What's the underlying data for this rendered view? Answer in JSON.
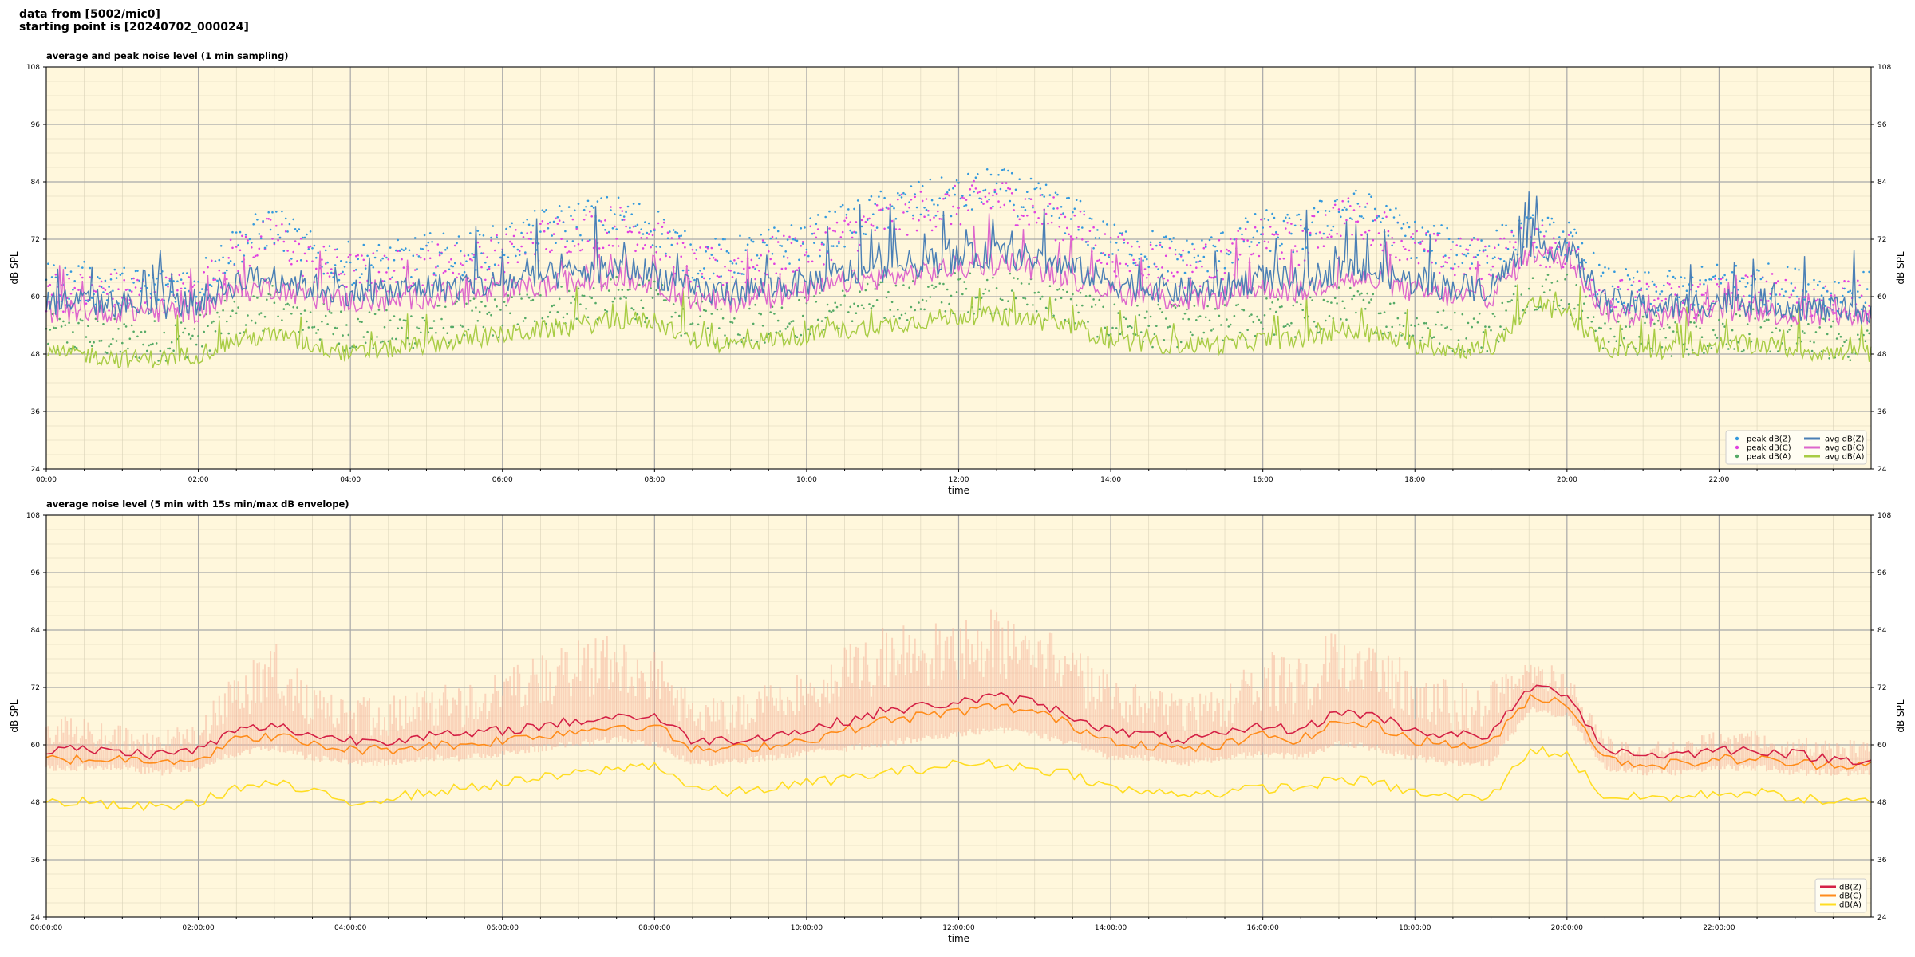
{
  "header": {
    "line1": "data from [5002/mic0]",
    "line2": "starting point is [20240702_000024]"
  },
  "chart_data": [
    {
      "type": "line",
      "title": "average and peak noise level (1 min sampling)",
      "xlabel": "time",
      "ylabel": "dB SPL",
      "ylim": [
        24,
        108
      ],
      "yticks": [
        "24",
        "36",
        "48",
        "60",
        "72",
        "84",
        "96",
        "108"
      ],
      "xlim_hours": [
        0,
        24
      ],
      "xticks": [
        "00:00",
        "02:00",
        "04:00",
        "06:00",
        "08:00",
        "10:00",
        "12:00",
        "14:00",
        "16:00",
        "18:00",
        "20:00",
        "22:00"
      ],
      "grid": true,
      "legend_position": "lower-right",
      "colors": {
        "background": "#fff7dc",
        "peak_z": "#3399dd",
        "peak_c": "#e040e0",
        "peak_a": "#55aa66",
        "avg_z": "#4a7fb5",
        "avg_c": "#dd66cc",
        "avg_a": "#a8cc44"
      },
      "legend": [
        "peak dB(Z)",
        "peak dB(C)",
        "peak dB(A)",
        "avg dB(Z)",
        "avg dB(C)",
        "avg dB(A)"
      ],
      "x": [
        0,
        0.5,
        1,
        1.5,
        2,
        2.5,
        3,
        3.5,
        4,
        4.5,
        5,
        5.5,
        6,
        6.5,
        7,
        7.5,
        8,
        8.5,
        9,
        9.5,
        10,
        10.5,
        11,
        11.5,
        12,
        12.5,
        13,
        13.5,
        14,
        14.5,
        15,
        15.5,
        16,
        16.5,
        17,
        17.5,
        18,
        18.5,
        19,
        19.5,
        20,
        20.5,
        21,
        21.5,
        22,
        22.5,
        23,
        23.5,
        24
      ],
      "series": [
        {
          "name": "avg dB(Z)",
          "values": [
            59,
            59,
            58.5,
            58,
            59,
            63,
            64,
            62,
            61,
            61,
            62,
            62,
            63,
            64,
            65,
            66,
            65,
            61,
            61,
            62,
            63,
            65,
            66,
            67,
            68,
            69,
            68,
            66,
            63,
            62,
            61,
            62,
            64,
            63,
            66,
            65,
            63,
            62,
            62,
            71,
            70,
            59,
            58,
            58,
            59,
            59,
            58,
            57,
            57
          ]
        },
        {
          "name": "avg dB(C)",
          "values": [
            57,
            57,
            57,
            57,
            57,
            61,
            62,
            60,
            59,
            59,
            60,
            60,
            61,
            62,
            63,
            64,
            63,
            59,
            59,
            60,
            61,
            63,
            64,
            65,
            66,
            67,
            66,
            64,
            61,
            60,
            59,
            60,
            62,
            61,
            64,
            63,
            61,
            60,
            60,
            69,
            68,
            57,
            56,
            56,
            57,
            57,
            56,
            56,
            56
          ]
        },
        {
          "name": "avg dB(A)",
          "values": [
            48,
            48,
            47,
            47,
            48,
            51,
            52,
            50,
            48,
            49,
            50,
            51,
            52,
            53,
            54,
            55,
            55,
            51,
            50,
            51,
            52,
            53,
            54,
            55,
            56,
            56,
            55,
            54,
            51,
            50,
            50,
            50,
            51,
            51,
            53,
            52,
            50,
            49,
            49,
            58,
            57,
            49,
            49,
            49,
            50,
            50,
            49,
            48,
            48
          ]
        },
        {
          "name": "peak dB(Z)",
          "values": [
            62,
            62,
            61,
            61,
            62,
            70,
            74,
            68,
            66,
            66,
            68,
            68,
            70,
            73,
            75,
            76,
            74,
            67,
            67,
            69,
            71,
            74,
            77,
            79,
            80,
            82,
            79,
            76,
            70,
            69,
            67,
            69,
            73,
            72,
            78,
            76,
            71,
            69,
            69,
            72,
            71,
            61,
            60,
            60,
            62,
            62,
            61,
            60,
            60
          ]
        },
        {
          "name": "peak dB(C)",
          "values": [
            60,
            60,
            60,
            60,
            60,
            68,
            72,
            66,
            64,
            64,
            66,
            66,
            68,
            71,
            73,
            74,
            72,
            65,
            65,
            67,
            69,
            72,
            75,
            77,
            78,
            80,
            77,
            74,
            68,
            67,
            65,
            67,
            71,
            70,
            76,
            74,
            69,
            67,
            67,
            70,
            69,
            59,
            58,
            58,
            60,
            60,
            59,
            58,
            58
          ]
        },
        {
          "name": "peak dB(A)",
          "values": [
            51,
            51,
            50,
            50,
            51,
            55,
            57,
            54,
            52,
            52,
            53,
            54,
            55,
            57,
            58,
            59,
            58,
            54,
            53,
            54,
            55,
            57,
            58,
            59,
            60,
            60,
            59,
            57,
            54,
            53,
            53,
            53,
            55,
            54,
            57,
            56,
            53,
            52,
            52,
            61,
            60,
            52,
            51,
            51,
            52,
            52,
            51,
            50,
            50
          ]
        }
      ]
    },
    {
      "type": "line",
      "title": "average noise level (5 min with 15s min/max dB envelope)",
      "xlabel": "time",
      "ylabel": "dB SPL",
      "ylim": [
        24,
        108
      ],
      "yticks": [
        "24",
        "36",
        "48",
        "60",
        "72",
        "84",
        "96",
        "108"
      ],
      "xlim_hours": [
        0,
        24
      ],
      "xticks": [
        "00:00:00",
        "02:00:00",
        "04:00:00",
        "06:00:00",
        "08:00:00",
        "10:00:00",
        "12:00:00",
        "14:00:00",
        "16:00:00",
        "18:00:00",
        "20:00:00",
        "22:00:00"
      ],
      "grid": true,
      "legend_position": "lower-right",
      "colors": {
        "background": "#fff7dc",
        "z": "#d42045",
        "c": "#ff8c1a",
        "a": "#ffdd22",
        "envelope": "#f6b8a0"
      },
      "legend": [
        "dB(Z)",
        "dB(C)",
        "dB(A)"
      ],
      "x": [
        0,
        0.5,
        1,
        1.5,
        2,
        2.5,
        3,
        3.5,
        4,
        4.5,
        5,
        5.5,
        6,
        6.5,
        7,
        7.5,
        8,
        8.5,
        9,
        9.5,
        10,
        10.5,
        11,
        11.5,
        12,
        12.5,
        13,
        13.5,
        14,
        14.5,
        15,
        15.5,
        16,
        16.5,
        17,
        17.5,
        18,
        18.5,
        19,
        19.5,
        20,
        20.5,
        21,
        21.5,
        22,
        22.5,
        23,
        23.5,
        24
      ],
      "series": [
        {
          "name": "dB(Z)",
          "values": [
            59,
            59,
            58.5,
            58,
            59,
            63,
            64,
            62,
            61,
            61,
            62,
            62,
            63,
            64,
            65,
            66,
            66,
            61,
            61,
            62,
            63,
            65,
            67,
            68,
            69,
            70,
            69,
            66,
            63,
            62,
            61,
            62,
            64,
            63,
            67,
            66,
            63,
            62,
            62,
            72,
            71,
            59,
            58,
            58,
            59,
            59,
            58,
            57,
            57
          ]
        },
        {
          "name": "dB(C)",
          "values": [
            57,
            57,
            57,
            57,
            57,
            61,
            62,
            60,
            59,
            59,
            60,
            60,
            61,
            62,
            63,
            64,
            64,
            59,
            59,
            60,
            61,
            63,
            65,
            66,
            67,
            68,
            67,
            64,
            61,
            60,
            59,
            60,
            62,
            61,
            65,
            64,
            61,
            60,
            60,
            70,
            69,
            57,
            56,
            56,
            57,
            57,
            56,
            56,
            56
          ]
        },
        {
          "name": "dB(A)",
          "values": [
            48,
            48,
            47,
            47,
            48,
            51,
            52,
            50,
            48,
            49,
            50,
            51,
            52,
            53,
            54,
            55,
            56,
            51,
            50,
            51,
            52,
            53,
            54,
            55,
            56,
            56,
            55,
            54,
            51,
            50,
            50,
            50,
            51,
            51,
            53,
            52,
            50,
            49,
            49,
            59,
            58,
            49,
            49,
            49,
            50,
            50,
            49,
            48,
            48
          ]
        },
        {
          "name": "envelope min",
          "values": [
            56,
            56,
            56,
            55,
            56,
            59,
            60,
            58,
            57,
            57,
            58,
            58,
            59,
            60,
            61,
            62,
            61,
            57,
            57,
            58,
            59,
            60,
            61,
            62,
            63,
            64,
            63,
            61,
            58,
            58,
            57,
            58,
            59,
            58,
            61,
            60,
            58,
            57,
            57,
            68,
            67,
            56,
            55,
            55,
            56,
            56,
            55,
            55,
            55
          ]
        },
        {
          "name": "envelope max",
          "values": [
            66,
            66,
            64,
            63,
            65,
            76,
            82,
            72,
            70,
            70,
            73,
            73,
            76,
            80,
            82,
            83,
            80,
            70,
            70,
            74,
            78,
            82,
            85,
            87,
            88,
            89,
            87,
            83,
            74,
            72,
            70,
            73,
            80,
            78,
            86,
            84,
            76,
            73,
            73,
            78,
            76,
            62,
            61,
            61,
            63,
            63,
            62,
            61,
            61
          ]
        }
      ]
    }
  ]
}
